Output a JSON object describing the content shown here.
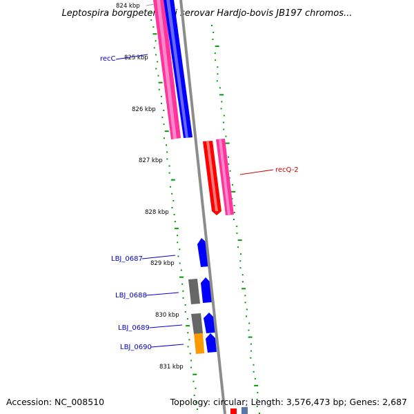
{
  "title": "Leptospira borgpetersenii serovar Hardjo-bovis JB197 chromos...",
  "footer": {
    "accession": "Accession: NC_008510",
    "summary": "Topology: circular; Length: 3,576,473 bp; Genes: 2,687"
  },
  "ticks": [
    "824 kbp",
    "825 kbp",
    "826 kbp",
    "827 kbp",
    "828 kbp",
    "829 kbp",
    "830 kbp",
    "831 kbp"
  ],
  "genes": [
    {
      "label": "recC",
      "color": "#0000cc"
    },
    {
      "label": "recQ-2",
      "color": "#cc0000"
    },
    {
      "label": "LBJ_0687",
      "color": "#0000cc"
    },
    {
      "label": "LBJ_0688",
      "color": "#0000cc"
    },
    {
      "label": "LBJ_0689",
      "color": "#0000cc"
    },
    {
      "label": "LBJ_0690",
      "color": "#0000cc"
    }
  ],
  "colors": {
    "backbone": "#8c8c8c",
    "cds_forward": "#0000ff",
    "rrna_pink": "#ff3399",
    "reverse_red": "#ff0000",
    "pseudo_grey": "#666666",
    "orange": "#ff9900",
    "gc_skew_dots": "#009900"
  }
}
